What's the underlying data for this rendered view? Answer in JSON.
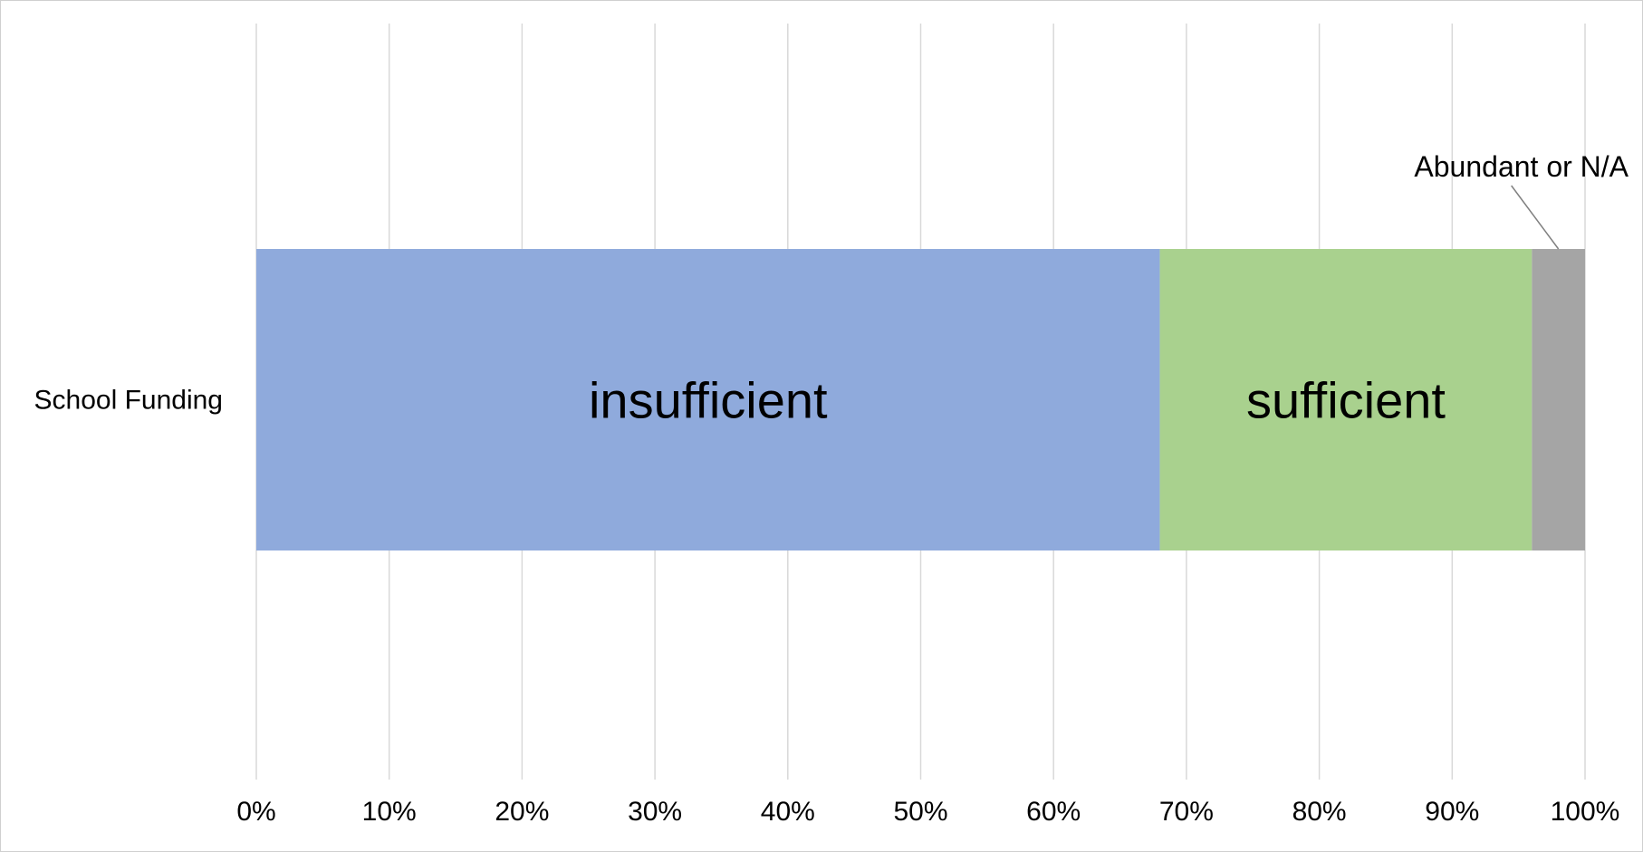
{
  "chart_data": {
    "type": "bar",
    "orientation": "horizontal",
    "stacked": "100%",
    "categories": [
      "School Funding"
    ],
    "series": [
      {
        "name": "insufficient",
        "values": [
          68
        ],
        "color": "#8FAADC"
      },
      {
        "name": "sufficient",
        "values": [
          28
        ],
        "color": "#A9D18E"
      },
      {
        "name": "Abundant or N/A",
        "values": [
          4
        ],
        "color": "#A5A5A5"
      }
    ],
    "xlim": [
      0,
      100
    ],
    "x_ticks": [
      "0%",
      "10%",
      "20%",
      "30%",
      "40%",
      "50%",
      "60%",
      "70%",
      "80%",
      "90%",
      "100%"
    ],
    "grid": true,
    "grid_color": "#D9D9D9",
    "legend": "none",
    "title": "",
    "xlabel": "",
    "ylabel": ""
  }
}
